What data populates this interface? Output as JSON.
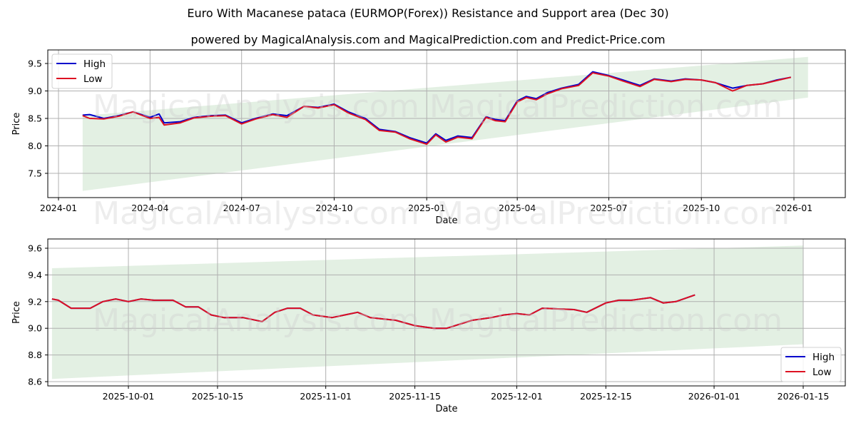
{
  "header": {
    "title": "Euro With Macanese pataca (EURMOP(Forex)) Resistance and Support area (Dec 30)",
    "subtitle": "powered by MagicalAnalysis.com and MagicalPrediction.com and Predict-Price.com"
  },
  "watermarks": [
    "MagicalAnalysis.com",
    "MagicalPrediction.com"
  ],
  "colors": {
    "high": "#0000cc",
    "low": "#dd1122",
    "band": "#dcecdc",
    "grid": "#b0b0b0"
  },
  "chart_data": [
    {
      "type": "line",
      "title": "Euro With Macanese pataca (EURMOP(Forex)) Resistance and Support area (Dec 30)",
      "xlabel": "Date",
      "ylabel": "Price",
      "ylim": [
        7.05,
        9.75
      ],
      "yticks": [
        7.5,
        8.0,
        8.5,
        9.0,
        9.5
      ],
      "ytick_labels": [
        "7.5",
        "8.0",
        "8.5",
        "9.0",
        "9.5"
      ],
      "xticks": [
        "2024-01",
        "2024-04",
        "2024-07",
        "2024-10",
        "2025-01",
        "2025-04",
        "2025-07",
        "2025-10",
        "2026-01"
      ],
      "grid": true,
      "legend": {
        "position": "upper left",
        "entries": [
          "High",
          "Low"
        ]
      },
      "x": [
        "2024-01-25",
        "2024-02-01",
        "2024-02-15",
        "2024-03-01",
        "2024-03-15",
        "2024-04-01",
        "2024-04-10",
        "2024-04-15",
        "2024-05-01",
        "2024-05-15",
        "2024-06-01",
        "2024-06-15",
        "2024-07-01",
        "2024-07-15",
        "2024-08-01",
        "2024-08-15",
        "2024-09-01",
        "2024-09-15",
        "2024-10-01",
        "2024-10-15",
        "2024-11-01",
        "2024-11-15",
        "2024-12-01",
        "2024-12-15",
        "2025-01-01",
        "2025-01-10",
        "2025-01-20",
        "2025-02-01",
        "2025-02-15",
        "2025-03-01",
        "2025-03-10",
        "2025-03-20",
        "2025-04-01",
        "2025-04-10",
        "2025-04-20",
        "2025-05-01",
        "2025-05-15",
        "2025-06-01",
        "2025-06-15",
        "2025-07-01",
        "2025-07-15",
        "2025-08-01",
        "2025-08-15",
        "2025-09-01",
        "2025-09-15",
        "2025-10-01",
        "2025-10-15",
        "2025-11-01",
        "2025-11-15",
        "2025-12-01",
        "2025-12-15",
        "2025-12-29"
      ],
      "series": [
        {
          "name": "High",
          "values": [
            8.56,
            8.57,
            8.5,
            8.55,
            8.62,
            8.52,
            8.58,
            8.42,
            8.44,
            8.52,
            8.55,
            8.56,
            8.42,
            8.5,
            8.58,
            8.55,
            8.72,
            8.7,
            8.76,
            8.62,
            8.5,
            8.3,
            8.26,
            8.15,
            8.05,
            8.22,
            8.1,
            8.18,
            8.15,
            8.53,
            8.48,
            8.46,
            8.82,
            8.9,
            8.86,
            8.97,
            9.05,
            9.12,
            9.35,
            9.28,
            9.2,
            9.1,
            9.22,
            9.18,
            9.22,
            9.2,
            9.15,
            9.05,
            9.1,
            9.13,
            9.2,
            9.25
          ]
        },
        {
          "name": "Low",
          "values": [
            8.55,
            8.5,
            8.49,
            8.54,
            8.62,
            8.5,
            8.52,
            8.38,
            8.42,
            8.51,
            8.54,
            8.55,
            8.4,
            8.49,
            8.57,
            8.52,
            8.72,
            8.69,
            8.75,
            8.6,
            8.48,
            8.28,
            8.25,
            8.13,
            8.03,
            8.2,
            8.07,
            8.16,
            8.13,
            8.52,
            8.46,
            8.44,
            8.8,
            8.88,
            8.84,
            8.95,
            9.04,
            9.1,
            9.33,
            9.27,
            9.18,
            9.08,
            9.21,
            9.17,
            9.21,
            9.2,
            9.15,
            9.0,
            9.1,
            9.13,
            9.19,
            9.25
          ]
        }
      ],
      "support_resistance_band": {
        "x": [
          "2024-01-25",
          "2026-01-15"
        ],
        "upper": [
          8.55,
          9.62
        ],
        "lower": [
          7.18,
          8.88
        ]
      }
    },
    {
      "type": "line",
      "xlabel": "Date",
      "ylabel": "Price",
      "ylim": [
        8.57,
        9.67
      ],
      "yticks": [
        8.6,
        8.8,
        9.0,
        9.2,
        9.4,
        9.6
      ],
      "ytick_labels": [
        "8.6",
        "8.8",
        "9.0",
        "9.2",
        "9.4",
        "9.6"
      ],
      "xticks": [
        "2025-10-01",
        "2025-10-15",
        "2025-11-01",
        "2025-11-15",
        "2025-12-01",
        "2025-12-15",
        "2026-01-01",
        "2026-01-15"
      ],
      "grid": true,
      "legend": {
        "position": "lower right",
        "entries": [
          "High",
          "Low"
        ]
      },
      "x": [
        "2025-09-19",
        "2025-09-20",
        "2025-09-22",
        "2025-09-25",
        "2025-09-27",
        "2025-09-29",
        "2025-10-01",
        "2025-10-03",
        "2025-10-05",
        "2025-10-08",
        "2025-10-10",
        "2025-10-12",
        "2025-10-14",
        "2025-10-16",
        "2025-10-19",
        "2025-10-22",
        "2025-10-24",
        "2025-10-26",
        "2025-10-28",
        "2025-10-30",
        "2025-11-02",
        "2025-11-04",
        "2025-11-06",
        "2025-11-08",
        "2025-11-12",
        "2025-11-15",
        "2025-11-18",
        "2025-11-20",
        "2025-11-24",
        "2025-11-27",
        "2025-11-29",
        "2025-12-01",
        "2025-12-03",
        "2025-12-05",
        "2025-12-10",
        "2025-12-12",
        "2025-12-15",
        "2025-12-17",
        "2025-12-19",
        "2025-12-22",
        "2025-12-24",
        "2025-12-26",
        "2025-12-29"
      ],
      "series": [
        {
          "name": "High",
          "values": [
            9.22,
            9.21,
            9.15,
            9.15,
            9.2,
            9.22,
            9.2,
            9.22,
            9.21,
            9.21,
            9.16,
            9.16,
            9.1,
            9.08,
            9.08,
            9.05,
            9.12,
            9.15,
            9.15,
            9.1,
            9.08,
            9.1,
            9.12,
            9.08,
            9.06,
            9.02,
            9.0,
            9.0,
            9.06,
            9.08,
            9.1,
            9.11,
            9.1,
            9.15,
            9.14,
            9.12,
            9.19,
            9.21,
            9.21,
            9.23,
            9.19,
            9.2,
            9.25
          ]
        },
        {
          "name": "Low",
          "values": [
            9.22,
            9.21,
            9.15,
            9.15,
            9.2,
            9.22,
            9.2,
            9.22,
            9.21,
            9.21,
            9.16,
            9.16,
            9.1,
            9.08,
            9.08,
            9.05,
            9.12,
            9.15,
            9.15,
            9.1,
            9.08,
            9.1,
            9.12,
            9.08,
            9.06,
            9.02,
            9.0,
            9.0,
            9.06,
            9.08,
            9.1,
            9.11,
            9.1,
            9.15,
            9.14,
            9.12,
            9.19,
            9.21,
            9.21,
            9.23,
            9.19,
            9.2,
            9.25
          ]
        }
      ],
      "support_resistance_band": {
        "x": [
          "2025-09-19",
          "2026-01-15"
        ],
        "upper": [
          9.45,
          9.62
        ],
        "lower": [
          8.62,
          8.88
        ]
      }
    }
  ]
}
